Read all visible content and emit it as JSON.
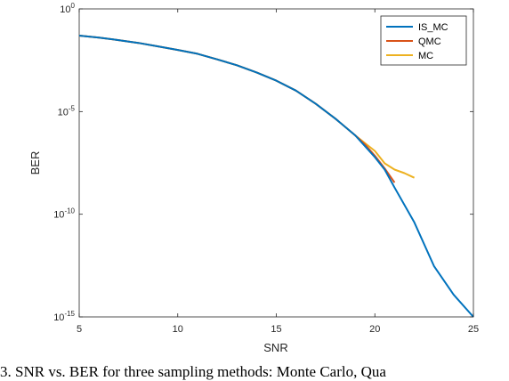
{
  "chart_data": {
    "type": "line",
    "xlabel": "SNR",
    "ylabel": "BER",
    "xlim": [
      5,
      25
    ],
    "ylim": [
      1e-15,
      1
    ],
    "yscale": "log",
    "grid": false,
    "legend_position": "top-right",
    "x_ticks": [
      5,
      10,
      15,
      20,
      25
    ],
    "y_ticks": [
      {
        "value": 1,
        "base": "10",
        "exp": "0"
      },
      {
        "value": 1e-05,
        "base": "10",
        "exp": "-5"
      },
      {
        "value": 1e-10,
        "base": "10",
        "exp": "-10"
      },
      {
        "value": 1e-15,
        "base": "10",
        "exp": "-15"
      }
    ],
    "series": [
      {
        "name": "IS_MC",
        "color": "#0072BD",
        "x": [
          5,
          6,
          7,
          8,
          9,
          10,
          11,
          12,
          13,
          14,
          15,
          16,
          17,
          18,
          19,
          20,
          20.5,
          21,
          22,
          23,
          24,
          25
        ],
        "y": [
          0.05,
          0.04,
          0.03,
          0.022,
          0.015,
          0.01,
          0.0065,
          0.0035,
          0.0018,
          0.0008,
          0.00032,
          0.000105,
          2.4e-05,
          4.5e-06,
          7e-07,
          6e-08,
          1.5e-08,
          2e-09,
          4e-11,
          3e-13,
          1.2e-14,
          1e-15
        ]
      },
      {
        "name": "QMC",
        "color": "#D95319",
        "x": [
          5,
          6,
          7,
          8,
          9,
          10,
          11,
          12,
          13,
          14,
          15,
          16,
          17,
          18,
          19,
          19.5,
          20,
          20.5,
          21
        ],
        "y": [
          0.05,
          0.04,
          0.03,
          0.022,
          0.015,
          0.01,
          0.0065,
          0.0035,
          0.0018,
          0.0008,
          0.00032,
          0.000105,
          2.4e-05,
          4.5e-06,
          7e-07,
          2.5e-07,
          7e-08,
          1.7e-08,
          3.5e-09
        ]
      },
      {
        "name": "MC",
        "color": "#EDB120",
        "x": [
          5,
          6,
          7,
          8,
          9,
          10,
          11,
          12,
          13,
          14,
          15,
          16,
          17,
          18,
          19,
          20,
          20.5,
          21,
          21.5,
          22
        ],
        "y": [
          0.05,
          0.04,
          0.03,
          0.022,
          0.015,
          0.01,
          0.0065,
          0.0035,
          0.0018,
          0.0008,
          0.00032,
          0.000105,
          2.4e-05,
          4.5e-06,
          7e-07,
          1.2e-07,
          3e-08,
          1.5e-08,
          1e-08,
          6e-09
        ]
      }
    ]
  },
  "caption": "3.  SNR vs. BER for three sampling methods: Monte Carlo, Qua"
}
